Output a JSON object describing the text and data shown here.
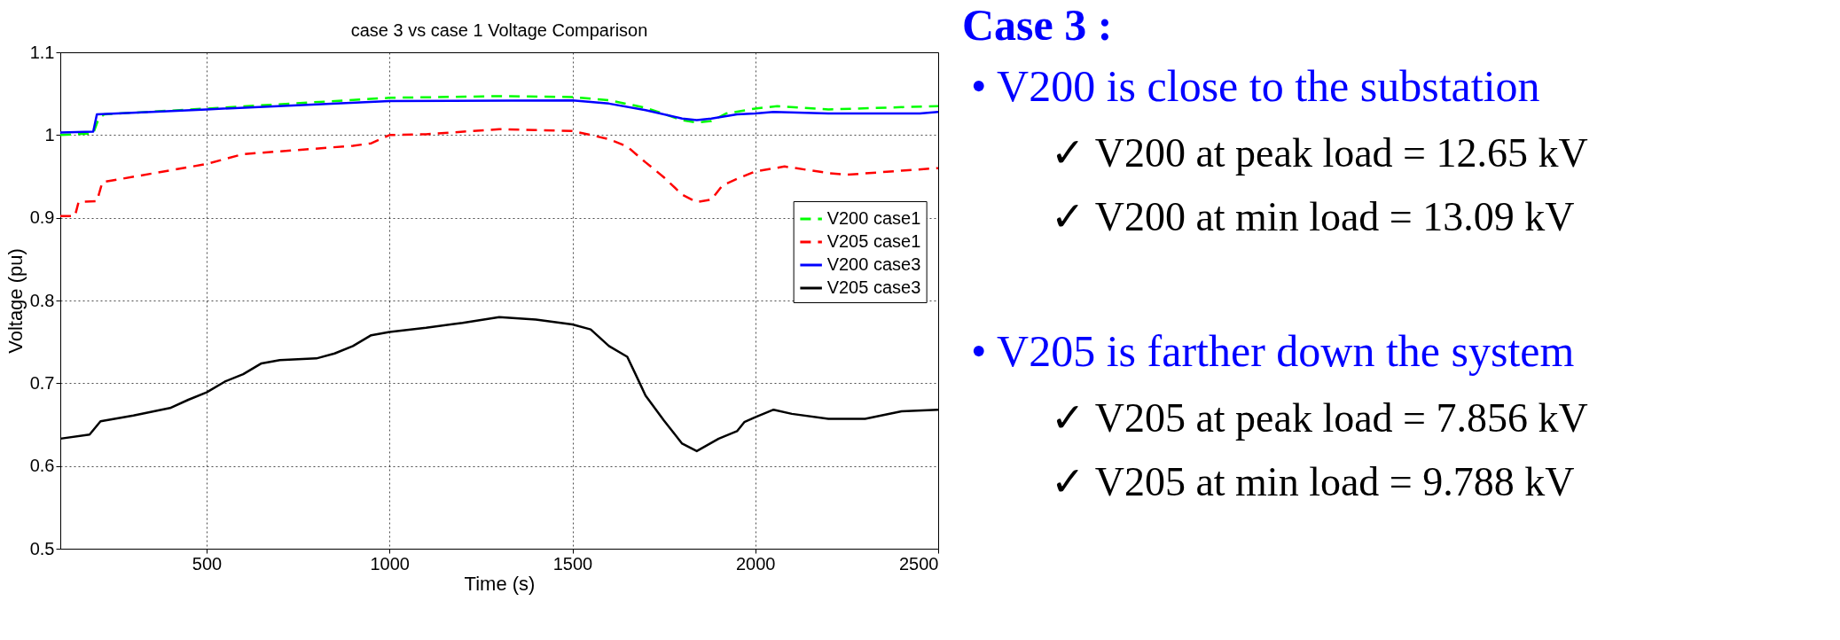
{
  "chart_data": [
    {
      "type": "line",
      "title": "case 3 vs case 1 Voltage Comparison",
      "xlabel": "Time (s)",
      "ylabel": "Voltage (pu)",
      "xlim": [
        100,
        2500
      ],
      "ylim": [
        0.5,
        1.1
      ],
      "xticks": [
        500,
        1000,
        1500,
        2000,
        2500
      ],
      "yticks": [
        0.5,
        0.6,
        0.7,
        0.8,
        0.9,
        1,
        1.1
      ],
      "grid": true,
      "legend": "right",
      "marker": "none",
      "series": [
        {
          "name": "V200 case1",
          "color": "#00ff00",
          "line_style": "dashed",
          "x": [
            100,
            190,
            205,
            220,
            500,
            1000,
            1300,
            1500,
            1600,
            1700,
            1800,
            1840,
            1880,
            1920,
            2000,
            2060,
            2200,
            2500
          ],
          "values": [
            1.0,
            1.002,
            1.02,
            1.025,
            1.032,
            1.045,
            1.047,
            1.046,
            1.042,
            1.033,
            1.018,
            1.015,
            1.017,
            1.026,
            1.032,
            1.035,
            1.031,
            1.035
          ]
        },
        {
          "name": "V205 case1",
          "color": "#ff0000",
          "line_style": "dashed",
          "x": [
            100,
            140,
            150,
            200,
            215,
            500,
            600,
            900,
            950,
            1000,
            1100,
            1300,
            1500,
            1600,
            1650,
            1700,
            1750,
            1800,
            1840,
            1880,
            1910,
            1950,
            2000,
            2080,
            2200,
            2250,
            2400,
            2500
          ],
          "values": [
            0.902,
            0.902,
            0.919,
            0.92,
            0.943,
            0.965,
            0.977,
            0.987,
            0.99,
            1.0,
            1.001,
            1.007,
            1.005,
            0.995,
            0.986,
            0.967,
            0.949,
            0.928,
            0.919,
            0.922,
            0.939,
            0.947,
            0.956,
            0.962,
            0.954,
            0.952,
            0.957,
            0.96
          ]
        },
        {
          "name": "V200 case3",
          "color": "#0000ff",
          "line_style": "solid",
          "x": [
            100,
            190,
            200,
            500,
            1000,
            1500,
            1600,
            1700,
            1800,
            1840,
            1880,
            1950,
            2000,
            2050,
            2200,
            2450,
            2500
          ],
          "values": [
            1.003,
            1.004,
            1.025,
            1.031,
            1.041,
            1.042,
            1.038,
            1.03,
            1.02,
            1.018,
            1.02,
            1.025,
            1.026,
            1.028,
            1.026,
            1.026,
            1.028
          ]
        },
        {
          "name": "V205 case3",
          "color": "#000000",
          "line_style": "solid",
          "x": [
            100,
            180,
            210,
            300,
            400,
            450,
            500,
            550,
            600,
            650,
            700,
            800,
            850,
            900,
            950,
            1000,
            1100,
            1200,
            1300,
            1400,
            1500,
            1550,
            1600,
            1650,
            1680,
            1700,
            1750,
            1800,
            1840,
            1900,
            1950,
            1970,
            2000,
            2050,
            2100,
            2200,
            2300,
            2400,
            2500
          ],
          "values": [
            0.633,
            0.638,
            0.654,
            0.661,
            0.67,
            0.68,
            0.689,
            0.702,
            0.711,
            0.724,
            0.728,
            0.73,
            0.736,
            0.745,
            0.758,
            0.762,
            0.767,
            0.773,
            0.78,
            0.777,
            0.771,
            0.765,
            0.745,
            0.732,
            0.704,
            0.685,
            0.655,
            0.627,
            0.618,
            0.633,
            0.642,
            0.653,
            0.659,
            0.668,
            0.663,
            0.657,
            0.657,
            0.666,
            0.668
          ]
        }
      ]
    },
    {
      "type": "other",
      "title": "Case 3 :",
      "annotations": [
        "•  V200 is close to the substation",
        "✓  V200 at peak load = 12.65 kV",
        "✓  V200 at min load = 13.09 kV",
        "•  V205 is farther down the system",
        "✓  V205 at peak load = 7.856 kV",
        "✓  V205 at min load = 9.788 kV"
      ]
    }
  ]
}
